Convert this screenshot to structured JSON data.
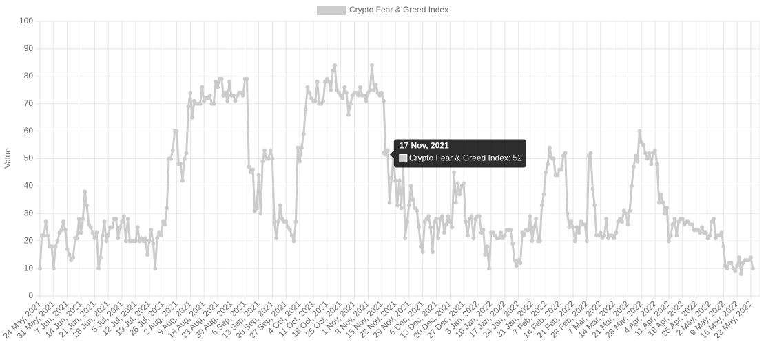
{
  "chart_data": {
    "type": "line",
    "y_label": "Value",
    "x": [
      "24 May, 2021",
      null,
      null,
      null,
      null,
      null,
      null,
      "31 May, 2021",
      null,
      null,
      null,
      null,
      null,
      null,
      "7 Jun, 2021",
      null,
      null,
      null,
      null,
      null,
      null,
      "14 Jun, 2021",
      null,
      null,
      null,
      null,
      null,
      null,
      "21 Jun, 2021",
      null,
      null,
      null,
      null,
      null,
      null,
      "28 Jun, 2021",
      null,
      null,
      null,
      null,
      null,
      null,
      "5 Jul, 2021",
      null,
      null,
      null,
      null,
      null,
      null,
      "12 Jul, 2021",
      null,
      null,
      null,
      null,
      null,
      null,
      "19 Jul, 2021",
      null,
      null,
      null,
      null,
      null,
      null,
      "26 Jul, 2021",
      null,
      null,
      null,
      null,
      null,
      null,
      "2 Aug, 2021",
      null,
      null,
      null,
      null,
      null,
      null,
      "9 Aug, 2021",
      null,
      null,
      null,
      null,
      null,
      null,
      "16 Aug, 2021",
      null,
      null,
      null,
      null,
      null,
      null,
      "23 Aug, 2021",
      null,
      null,
      null,
      null,
      null,
      null,
      "30 Aug, 2021",
      null,
      null,
      null,
      null,
      null,
      null,
      "6 Sep, 2021",
      null,
      null,
      null,
      null,
      null,
      null,
      "13 Sep, 2021",
      null,
      null,
      null,
      null,
      null,
      null,
      "20 Sep, 2021",
      null,
      null,
      null,
      null,
      null,
      null,
      "27 Sep, 2021",
      null,
      null,
      null,
      null,
      null,
      null,
      "4 Oct, 2021",
      null,
      null,
      null,
      null,
      null,
      null,
      "11 Oct, 2021",
      null,
      null,
      null,
      null,
      null,
      null,
      "18 Oct, 2021",
      null,
      null,
      null,
      null,
      null,
      null,
      "25 Oct, 2021",
      null,
      null,
      null,
      null,
      null,
      null,
      "1 Nov, 2021",
      null,
      null,
      null,
      null,
      null,
      null,
      "8 Nov, 2021",
      null,
      null,
      null,
      null,
      null,
      null,
      "15 Nov, 2021",
      null,
      null,
      null,
      null,
      null,
      null,
      "22 Nov, 2021",
      null,
      null,
      null,
      null,
      null,
      null,
      "29 Nov, 2021",
      null,
      null,
      null,
      null,
      null,
      null,
      "6 Dec, 2021",
      null,
      null,
      null,
      null,
      null,
      null,
      "13 Dec, 2021",
      null,
      null,
      null,
      null,
      null,
      null,
      "20 Dec, 2021",
      null,
      null,
      null,
      null,
      null,
      null,
      "27 Dec, 2021",
      null,
      null,
      null,
      null,
      null,
      null,
      "3 Jan, 2022",
      null,
      null,
      null,
      null,
      null,
      null,
      "10 Jan, 2022",
      null,
      null,
      null,
      null,
      null,
      null,
      "17 Jan, 2022",
      null,
      null,
      null,
      null,
      null,
      null,
      "24 Jan, 2022",
      null,
      null,
      null,
      null,
      null,
      null,
      "31 Jan, 2022",
      null,
      null,
      null,
      null,
      null,
      null,
      "7 Feb, 2022",
      null,
      null,
      null,
      null,
      null,
      null,
      "14 Feb, 2022",
      null,
      null,
      null,
      null,
      null,
      null,
      "21 Feb, 2022",
      null,
      null,
      null,
      null,
      null,
      null,
      "28 Feb, 2022",
      null,
      null,
      null,
      null,
      null,
      null,
      "7 Mar, 2022",
      null,
      null,
      null,
      null,
      null,
      null,
      "14 Mar, 2022",
      null,
      null,
      null,
      null,
      null,
      null,
      "21 Mar, 2022",
      null,
      null,
      null,
      null,
      null,
      null,
      "28 Mar, 2022",
      null,
      null,
      null,
      null,
      null,
      null,
      "4 Apr, 2022",
      null,
      null,
      null,
      null,
      null,
      null,
      "11 Apr, 2022",
      null,
      null,
      null,
      null,
      null,
      null,
      "18 Apr, 2022",
      null,
      null,
      null,
      null,
      null,
      null,
      "25 Apr, 2022",
      null,
      null,
      null,
      null,
      null,
      null,
      "2 May, 2022",
      null,
      null,
      null,
      null,
      null,
      null,
      "9 May, 2022",
      null,
      null,
      null,
      null,
      null,
      null,
      "16 May, 2022",
      null,
      null,
      null,
      null,
      null,
      null,
      "23 May, 2022",
      null
    ],
    "series": [
      {
        "name": "Crypto Fear & Greed Index",
        "color": "#cccccc",
        "values": [
          10,
          22,
          22,
          27,
          22,
          18,
          18,
          10,
          18,
          20,
          23,
          24,
          27,
          24,
          17,
          15,
          13,
          14,
          21,
          21,
          28,
          23,
          28,
          38,
          33,
          26,
          25,
          23,
          21,
          23,
          10,
          14,
          22,
          27,
          20,
          22,
          25,
          25,
          28,
          28,
          21,
          25,
          27,
          29,
          20,
          28,
          20,
          20,
          20,
          20,
          25,
          20,
          21,
          20,
          21,
          15,
          20,
          24,
          19,
          10,
          21,
          23,
          22,
          27,
          26,
          32,
          50,
          50,
          53,
          60,
          60,
          48,
          48,
          42,
          50,
          52,
          69,
          74,
          65,
          71,
          70,
          70,
          70,
          76,
          71,
          72,
          72,
          73,
          70,
          70,
          78,
          76,
          79,
          79,
          73,
          74,
          71,
          78,
          73,
          73,
          71,
          73,
          74,
          74,
          73,
          79,
          79,
          47,
          45,
          46,
          31,
          32,
          44,
          30,
          49,
          53,
          50,
          50,
          53,
          50,
          27,
          21,
          27,
          33,
          28,
          27,
          27,
          25,
          24,
          22,
          20,
          27,
          54,
          49,
          54,
          59,
          68,
          76,
          74,
          72,
          71,
          71,
          78,
          70,
          70,
          71,
          78,
          79,
          78,
          75,
          82,
          84,
          75,
          74,
          73,
          72,
          76,
          74,
          66,
          70,
          73,
          74,
          74,
          73,
          76,
          73,
          73,
          71,
          74,
          75,
          84,
          75,
          77,
          74,
          73,
          74,
          71,
          52,
          53,
          34,
          43,
          50,
          42,
          33,
          42,
          32,
          48,
          21,
          27,
          33,
          40,
          35,
          32,
          31,
          25,
          18,
          16,
          27,
          28,
          29,
          25,
          16,
          27,
          28,
          21,
          28,
          29,
          23,
          26,
          29,
          27,
          25,
          45,
          34,
          41,
          37,
          40,
          41,
          27,
          22,
          28,
          29,
          21,
          28,
          29,
          29,
          23,
          24,
          15,
          18,
          10,
          23,
          23,
          22,
          21,
          21,
          23,
          21,
          22,
          24,
          24,
          24,
          19,
          13,
          11,
          13,
          12,
          23,
          22,
          24,
          24,
          29,
          20,
          25,
          28,
          20,
          20,
          33,
          37,
          45,
          48,
          54,
          50,
          50,
          44,
          44,
          46,
          46,
          51,
          52,
          30,
          25,
          27,
          25,
          20,
          25,
          23,
          27,
          26,
          26,
          20,
          51,
          52,
          39,
          33,
          22,
          22,
          23,
          21,
          22,
          28,
          21,
          22,
          22,
          21,
          23,
          27,
          28,
          27,
          31,
          30,
          26,
          31,
          40,
          47,
          51,
          49,
          60,
          56,
          55,
          52,
          50,
          52,
          48,
          52,
          53,
          48,
          34,
          37,
          34,
          30,
          32,
          20,
          22,
          26,
          28,
          22,
          27,
          28,
          28,
          26,
          27,
          27,
          26,
          26,
          24,
          24,
          24,
          23,
          25,
          23,
          23,
          21,
          22,
          27,
          28,
          21,
          22,
          22,
          23,
          18,
          11,
          10,
          12,
          12,
          10,
          9,
          11,
          14,
          8,
          12,
          13,
          13,
          13,
          14,
          10
        ]
      }
    ],
    "ylim": [
      0,
      100
    ],
    "yticks": [
      0,
      10,
      20,
      30,
      40,
      50,
      60,
      70,
      80,
      90,
      100
    ],
    "grid": true,
    "tooltip": {
      "title": "17 Nov, 2021",
      "label": "Crypto Fear & Greed Index: 52"
    }
  }
}
